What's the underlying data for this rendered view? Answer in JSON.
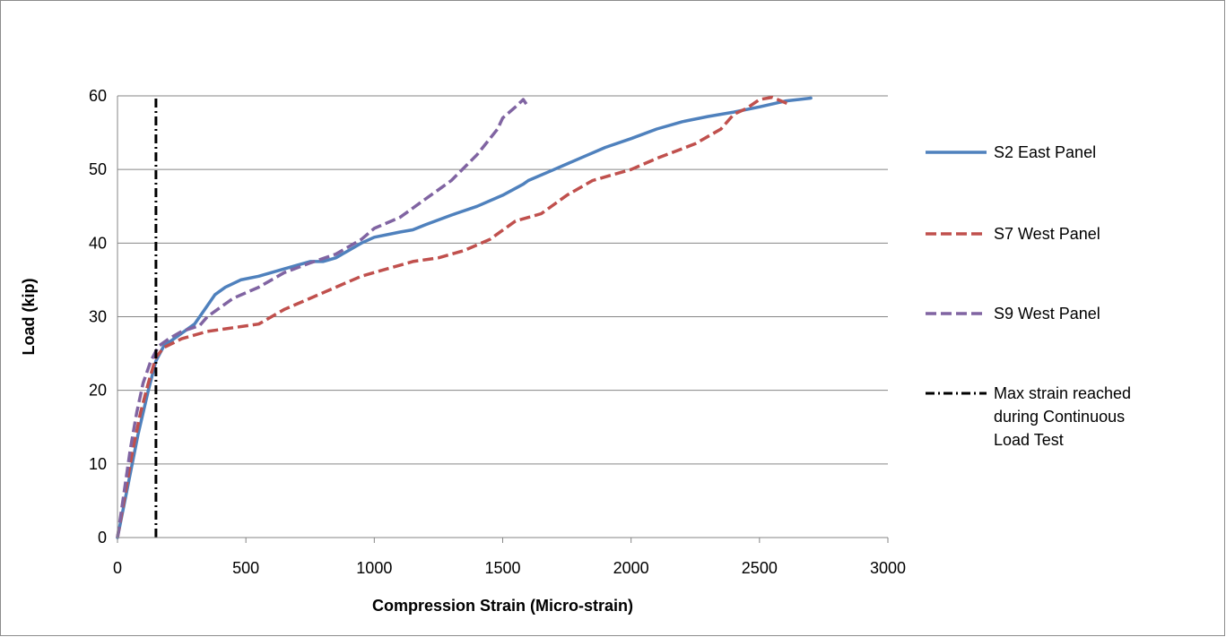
{
  "chart_data": {
    "type": "line",
    "title": "",
    "xlabel": "Compression Strain (Micro-strain)",
    "ylabel": "Load (kip)",
    "xlim": [
      0,
      3000
    ],
    "ylim": [
      0,
      60
    ],
    "x_ticks": [
      "0",
      "500",
      "1000",
      "1500",
      "2000",
      "2500",
      "3000"
    ],
    "y_ticks": [
      "0",
      "10",
      "20",
      "30",
      "40",
      "50",
      "60"
    ],
    "grid": "horizontal",
    "legend_position": "right",
    "series": [
      {
        "name": "S2 East Panel",
        "color": "#4f81bd",
        "dash": "solid",
        "points": [
          [
            0,
            0
          ],
          [
            40,
            7
          ],
          [
            80,
            14
          ],
          [
            120,
            20
          ],
          [
            150,
            24
          ],
          [
            180,
            26
          ],
          [
            220,
            27
          ],
          [
            260,
            28
          ],
          [
            300,
            29
          ],
          [
            340,
            31
          ],
          [
            380,
            33
          ],
          [
            420,
            34
          ],
          [
            480,
            35
          ],
          [
            550,
            35.5
          ],
          [
            650,
            36.5
          ],
          [
            750,
            37.5
          ],
          [
            800,
            37.5
          ],
          [
            850,
            38
          ],
          [
            900,
            39
          ],
          [
            950,
            40
          ],
          [
            1000,
            40.8
          ],
          [
            1100,
            41.5
          ],
          [
            1150,
            41.8
          ],
          [
            1200,
            42.5
          ],
          [
            1300,
            43.8
          ],
          [
            1400,
            45
          ],
          [
            1500,
            46.5
          ],
          [
            1580,
            48
          ],
          [
            1600,
            48.5
          ],
          [
            1700,
            50
          ],
          [
            1800,
            51.5
          ],
          [
            1900,
            53
          ],
          [
            2000,
            54.2
          ],
          [
            2100,
            55.5
          ],
          [
            2200,
            56.5
          ],
          [
            2300,
            57.2
          ],
          [
            2400,
            57.8
          ],
          [
            2500,
            58.5
          ],
          [
            2600,
            59.3
          ],
          [
            2700,
            59.7
          ]
        ]
      },
      {
        "name": "S7 West Panel",
        "color": "#c0504d",
        "dash": "dashed",
        "points": [
          [
            0,
            0
          ],
          [
            30,
            6
          ],
          [
            60,
            12
          ],
          [
            90,
            17
          ],
          [
            120,
            21
          ],
          [
            150,
            24.5
          ],
          [
            180,
            25.8
          ],
          [
            250,
            27
          ],
          [
            350,
            28
          ],
          [
            450,
            28.5
          ],
          [
            550,
            29
          ],
          [
            650,
            31
          ],
          [
            750,
            32.5
          ],
          [
            850,
            34
          ],
          [
            950,
            35.5
          ],
          [
            1050,
            36.5
          ],
          [
            1150,
            37.5
          ],
          [
            1250,
            38
          ],
          [
            1350,
            39
          ],
          [
            1450,
            40.5
          ],
          [
            1550,
            43
          ],
          [
            1650,
            44
          ],
          [
            1750,
            46.5
          ],
          [
            1850,
            48.5
          ],
          [
            2000,
            50
          ],
          [
            2100,
            51.5
          ],
          [
            2250,
            53.5
          ],
          [
            2350,
            55.5
          ],
          [
            2400,
            57.5
          ],
          [
            2450,
            58.3
          ],
          [
            2500,
            59.5
          ],
          [
            2550,
            59.8
          ],
          [
            2620,
            58.8
          ]
        ]
      },
      {
        "name": "S9 West Panel",
        "color": "#8064a2",
        "dash": "dashed",
        "points": [
          [
            0,
            0
          ],
          [
            25,
            6
          ],
          [
            50,
            12
          ],
          [
            75,
            17
          ],
          [
            100,
            21
          ],
          [
            130,
            24
          ],
          [
            160,
            26
          ],
          [
            200,
            27
          ],
          [
            250,
            28
          ],
          [
            320,
            28.8
          ],
          [
            350,
            30
          ],
          [
            450,
            32.5
          ],
          [
            550,
            34
          ],
          [
            650,
            36
          ],
          [
            750,
            37.3
          ],
          [
            850,
            38.5
          ],
          [
            950,
            40.5
          ],
          [
            1000,
            42
          ],
          [
            1100,
            43.5
          ],
          [
            1200,
            46
          ],
          [
            1300,
            48.5
          ],
          [
            1400,
            52
          ],
          [
            1480,
            55.5
          ],
          [
            1500,
            57
          ],
          [
            1550,
            58.5
          ],
          [
            1580,
            59.5
          ],
          [
            1600,
            58.5
          ]
        ]
      },
      {
        "name": "Max strain reached during Continuous Load Test",
        "legend_lines": [
          "Max strain reached",
          "during Continuous",
          "Load Test"
        ],
        "color": "#000000",
        "dash": "dashdot",
        "points": [
          [
            150,
            0
          ],
          [
            150,
            60
          ]
        ]
      }
    ]
  }
}
